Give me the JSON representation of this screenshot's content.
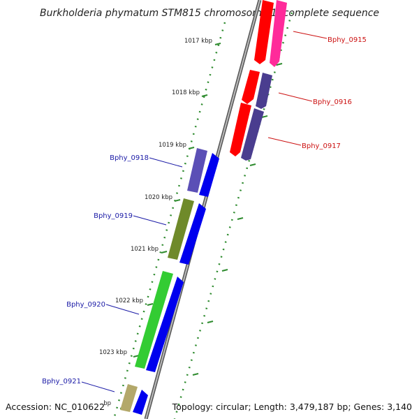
{
  "title": "Burkholderia phymatum STM815 chromosome 1, complete sequence",
  "footer": {
    "accession": "Accession: NC_010622",
    "topology": "Topology: circular; Length: 3,479,187 bp; Genes: 3,140"
  },
  "ticks": [
    {
      "label": "1017 kbp"
    },
    {
      "label": "1018 kbp"
    },
    {
      "label": "1019 kbp"
    },
    {
      "label": "1020 kbp"
    },
    {
      "label": "1021 kbp"
    },
    {
      "label": "1022 kbp"
    },
    {
      "label": "1023 kbp"
    },
    {
      "label": "bp"
    }
  ],
  "colors": {
    "forward_label": "#1a1aa6",
    "reverse_label": "#cc1111",
    "backbone": "#888888",
    "ruler": "#2e8b2e",
    "red_gene": "#ff0000",
    "pink_gene": "#ff2b9a",
    "purple_gene": "#4a3d8f",
    "blue_gene": "#0000ee",
    "olive_gene": "#6f8a2a",
    "green_gene": "#33cc33",
    "khaki_gene": "#b3a86a"
  },
  "genes": [
    {
      "id": "bphy-0915",
      "label": "Bphy_0915",
      "strand": "reverse"
    },
    {
      "id": "bphy-0916",
      "label": "Bphy_0916",
      "strand": "reverse"
    },
    {
      "id": "bphy-0917",
      "label": "Bphy_0917",
      "strand": "reverse"
    },
    {
      "id": "bphy-0918",
      "label": "Bphy_0918",
      "strand": "forward"
    },
    {
      "id": "bphy-0919",
      "label": "Bphy_0919",
      "strand": "forward"
    },
    {
      "id": "bphy-0920",
      "label": "Bphy_0920",
      "strand": "forward"
    },
    {
      "id": "bphy-0921",
      "label": "Bphy_0921",
      "strand": "forward"
    }
  ]
}
